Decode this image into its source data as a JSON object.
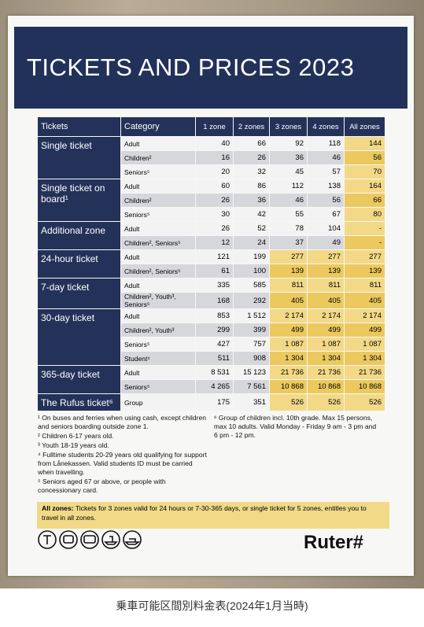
{
  "header": {
    "title": "TICKETS AND PRICES 2023"
  },
  "table": {
    "columns": [
      "Tickets",
      "Category",
      "1 zone",
      "2 zones",
      "3 zones",
      "4 zones",
      "All zones"
    ],
    "groups": [
      {
        "ticket": "Single ticket",
        "rows": [
          {
            "category": "Adult",
            "prices": [
              "40",
              "66",
              "92",
              "118",
              "144"
            ]
          },
          {
            "category": "Children²",
            "prices": [
              "16",
              "26",
              "36",
              "46",
              "56"
            ]
          },
          {
            "category": "Seniors⁵",
            "prices": [
              "20",
              "32",
              "45",
              "57",
              "70"
            ]
          }
        ]
      },
      {
        "ticket": "Single ticket on board¹",
        "rows": [
          {
            "category": "Adult",
            "prices": [
              "60",
              "86",
              "112",
              "138",
              "164"
            ]
          },
          {
            "category": "Children²",
            "prices": [
              "26",
              "36",
              "46",
              "56",
              "66"
            ]
          },
          {
            "category": "Seniors⁵",
            "prices": [
              "30",
              "42",
              "55",
              "67",
              "80"
            ]
          }
        ]
      },
      {
        "ticket": "Additional zone",
        "rows": [
          {
            "category": "Adult",
            "prices": [
              "26",
              "52",
              "78",
              "104",
              "-"
            ]
          },
          {
            "category": "Children², Seniors⁵",
            "prices": [
              "12",
              "24",
              "37",
              "49",
              "-"
            ]
          }
        ]
      },
      {
        "ticket": "24-hour ticket",
        "rows": [
          {
            "category": "Adult",
            "prices": [
              "121",
              "199",
              "277",
              "277",
              "277"
            ]
          },
          {
            "category": "Children², Seniors⁵",
            "prices": [
              "61",
              "100",
              "139",
              "139",
              "139"
            ]
          }
        ]
      },
      {
        "ticket": "7-day ticket",
        "rows": [
          {
            "category": "Adult",
            "prices": [
              "335",
              "585",
              "811",
              "811",
              "811"
            ]
          },
          {
            "category": "Children², Youth³, Seniors⁵",
            "prices": [
              "168",
              "292",
              "405",
              "405",
              "405"
            ]
          }
        ]
      },
      {
        "ticket": "30-day ticket",
        "rows": [
          {
            "category": "Adult",
            "prices": [
              "853",
              "1 512",
              "2 174",
              "2 174",
              "2 174"
            ]
          },
          {
            "category": "Children², Youth³",
            "prices": [
              "299",
              "399",
              "499",
              "499",
              "499"
            ]
          },
          {
            "category": "Seniors⁵",
            "prices": [
              "427",
              "757",
              "1 087",
              "1 087",
              "1 087"
            ]
          },
          {
            "category": "Student⁴",
            "prices": [
              "511",
              "908",
              "1 304",
              "1 304",
              "1 304"
            ]
          }
        ]
      },
      {
        "ticket": "365-day ticket",
        "rows": [
          {
            "category": "Adult",
            "prices": [
              "8 531",
              "15 123",
              "21 736",
              "21 736",
              "21 736"
            ]
          },
          {
            "category": "Seniors⁵",
            "prices": [
              "4 265",
              "7 561",
              "10 868",
              "10 868",
              "10 868"
            ]
          }
        ]
      },
      {
        "ticket": "The Rufus ticket⁶",
        "rows": [
          {
            "category": "Group",
            "prices": [
              "175",
              "351",
              "526",
              "526",
              "526"
            ]
          }
        ]
      }
    ]
  },
  "footnotes": {
    "left": [
      "¹ On buses and ferries when using cash, except children and seniors boarding outside zone 1.",
      "² Children 6-17 years old.",
      "³ Youth 18-19 years old.",
      "⁴ Fulltime students 20-29 years old qualifying for support from Lånekassen. Valid students ID must be carried when travelling.",
      "⁵ Seniors aged 67 or above, or people with concessionary card."
    ],
    "right": [
      "⁶ Group of children incl. 10th grade. Max 15 persons, max 10 adults. Valid Monday - Friday 9 am - 3 pm and 6 pm - 12 pm."
    ]
  },
  "note": {
    "label": "All zones:",
    "text": "Tickets for 3 zones valid for 24 hours or 7-30-365 days, or single ticket for 5 zones, entitles you to travel in all zones."
  },
  "brand": "Ruter#",
  "caption": "乗車可能区間別料金表(2024年1月当時)"
}
